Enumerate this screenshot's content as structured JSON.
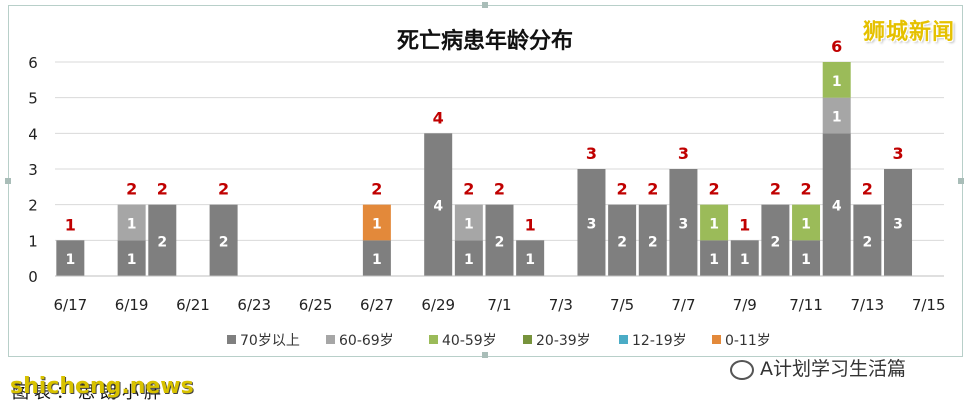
{
  "chart_data": {
    "type": "bar",
    "title": "死亡病患年龄分布",
    "xlabel": "",
    "ylabel": "",
    "ylim": [
      0,
      6
    ],
    "y_ticks": [
      "0",
      "1",
      "2",
      "3",
      "4",
      "5",
      "6"
    ],
    "x_tick_labels": [
      "6/17",
      "6/19",
      "6/21",
      "6/23",
      "6/25",
      "6/27",
      "6/29",
      "7/1",
      "7/3",
      "7/5",
      "7/7",
      "7/9",
      "7/11",
      "7/13",
      "7/15"
    ],
    "categories": [
      "6/17",
      "6/18",
      "6/19",
      "6/20",
      "6/21",
      "6/22",
      "6/23",
      "6/24",
      "6/25",
      "6/26",
      "6/27",
      "6/28",
      "6/29",
      "6/30",
      "7/1",
      "7/2",
      "7/3",
      "7/4",
      "7/5",
      "7/6",
      "7/7",
      "7/8",
      "7/9",
      "7/10",
      "7/11",
      "7/12",
      "7/13",
      "7/14",
      "7/15"
    ],
    "series": [
      {
        "name": "70岁以上",
        "color": "#7f7f7f",
        "values": [
          1,
          0,
          1,
          2,
          0,
          2,
          0,
          0,
          0,
          0,
          1,
          0,
          4,
          1,
          2,
          1,
          0,
          3,
          2,
          2,
          3,
          1,
          1,
          2,
          1,
          4,
          2,
          3,
          0
        ]
      },
      {
        "name": "60-69岁",
        "color": "#a6a6a6",
        "values": [
          0,
          0,
          1,
          0,
          0,
          0,
          0,
          0,
          0,
          0,
          0,
          0,
          0,
          1,
          0,
          0,
          0,
          0,
          0,
          0,
          0,
          0,
          0,
          0,
          0,
          1,
          0,
          0,
          0
        ]
      },
      {
        "name": "40-59岁",
        "color": "#9bbb59",
        "values": [
          0,
          0,
          0,
          0,
          0,
          0,
          0,
          0,
          0,
          0,
          0,
          0,
          0,
          0,
          0,
          0,
          0,
          0,
          0,
          0,
          0,
          1,
          0,
          0,
          1,
          1,
          0,
          0,
          0
        ]
      },
      {
        "name": "20-39岁",
        "color": "#77933c",
        "values": [
          0,
          0,
          0,
          0,
          0,
          0,
          0,
          0,
          0,
          0,
          0,
          0,
          0,
          0,
          0,
          0,
          0,
          0,
          0,
          0,
          0,
          0,
          0,
          0,
          0,
          0,
          0,
          0,
          0
        ]
      },
      {
        "name": "12-19岁",
        "color": "#4bacc6",
        "values": [
          0,
          0,
          0,
          0,
          0,
          0,
          0,
          0,
          0,
          0,
          0,
          0,
          0,
          0,
          0,
          0,
          0,
          0,
          0,
          0,
          0,
          0,
          0,
          0,
          0,
          0,
          0,
          0,
          0
        ]
      },
      {
        "name": "0-11岁",
        "color": "#e3893a",
        "values": [
          0,
          0,
          0,
          0,
          0,
          0,
          0,
          0,
          0,
          0,
          1,
          0,
          0,
          0,
          0,
          0,
          0,
          0,
          0,
          0,
          0,
          0,
          0,
          0,
          0,
          0,
          0,
          0,
          0
        ]
      }
    ],
    "totals": [
      1,
      0,
      2,
      2,
      0,
      2,
      0,
      0,
      0,
      0,
      2,
      0,
      4,
      2,
      2,
      1,
      0,
      3,
      2,
      2,
      3,
      2,
      1,
      2,
      2,
      6,
      2,
      3,
      0
    ],
    "total_color": "#c00000",
    "grid": true,
    "legend_position": "bottom"
  },
  "watermarks": {
    "top": "狮城新闻",
    "bottom": "shicheng.news",
    "source": "图表：思朗小胖",
    "wechat": "A计划学习生活篇"
  }
}
